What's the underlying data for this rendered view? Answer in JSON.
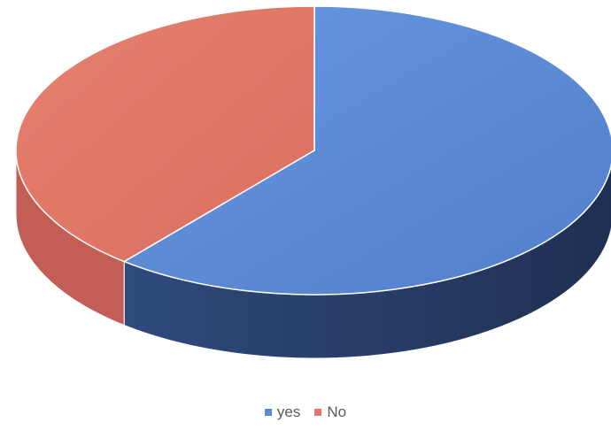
{
  "chart_data": {
    "type": "pie",
    "style": "3d",
    "categories": [
      "yes",
      "No"
    ],
    "values": [
      61,
      39
    ],
    "colors": [
      "#5b8bd6",
      "#e2796a"
    ],
    "side_colors": [
      "#2a3f6b",
      "#c35e56"
    ],
    "title": "",
    "legend_position": "bottom"
  }
}
